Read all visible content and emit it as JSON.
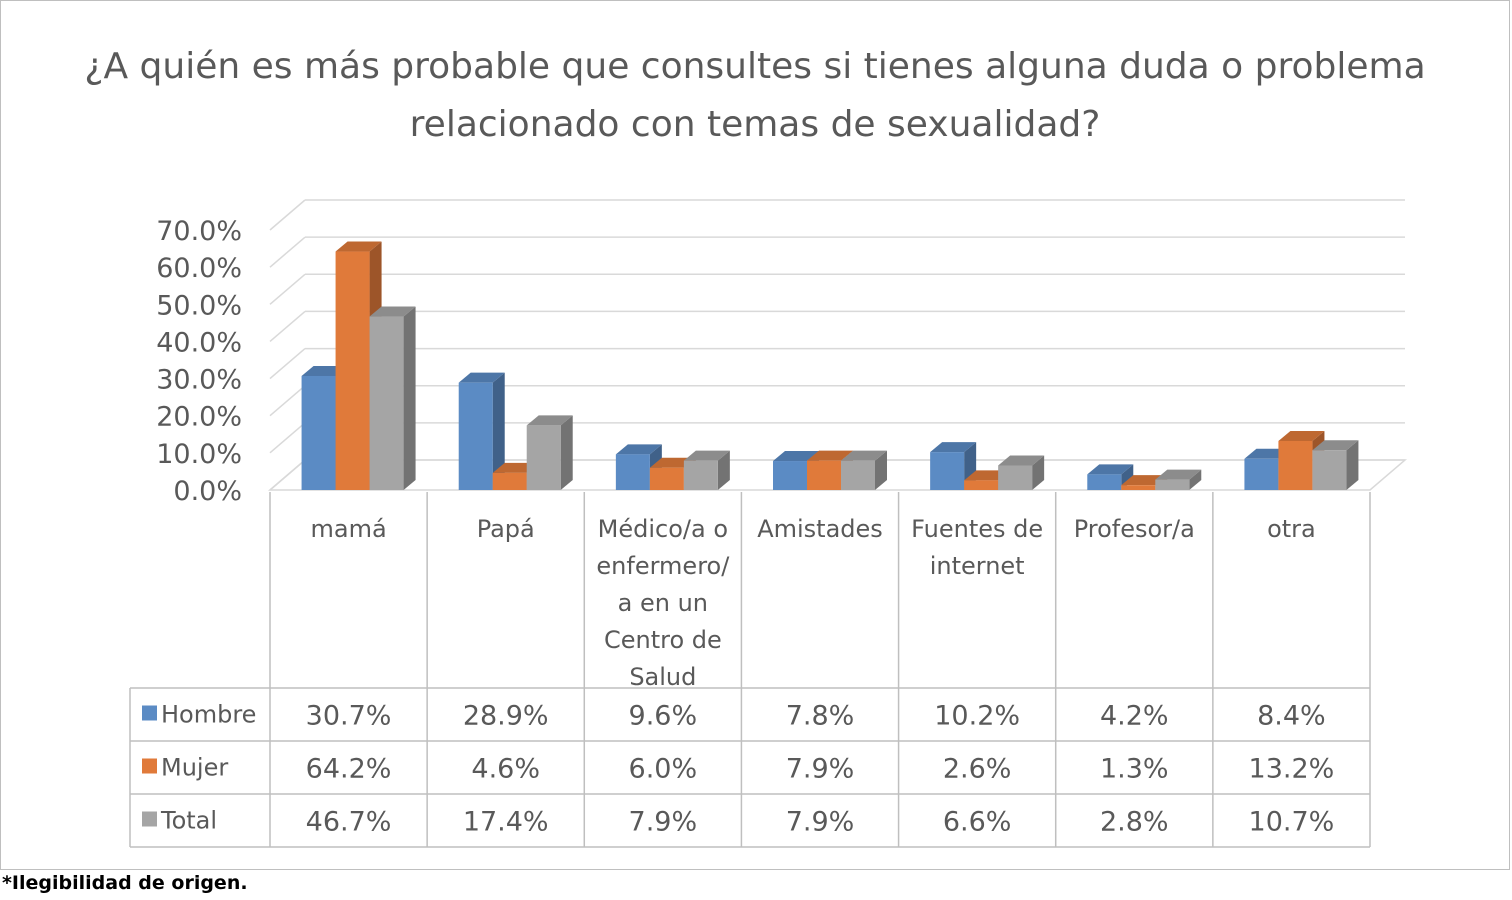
{
  "chart_data": {
    "type": "bar",
    "title": "¿A quién es más probable que consultes si tienes alguna duda o problema relacionado con temas de sexualidad?",
    "categories": [
      "mamá",
      "Papá",
      "Médico/a o enfermero/ a en un Centro de Salud",
      "Amistades",
      "Fuentes de internet",
      "Profesor/a",
      "otra"
    ],
    "category_lines": [
      [
        "mamá"
      ],
      [
        "Papá"
      ],
      [
        "Médico/a o",
        "enfermero/",
        "a en un",
        "Centro de",
        "Salud"
      ],
      [
        "Amistades"
      ],
      [
        "Fuentes de",
        "internet"
      ],
      [
        "Profesor/a"
      ],
      [
        "otra"
      ]
    ],
    "series": [
      {
        "name": "Hombre",
        "color": "#5b8bc4",
        "values": [
          30.7,
          28.9,
          9.6,
          7.8,
          10.2,
          4.2,
          8.4
        ],
        "labels": [
          "30.7%",
          "28.9%",
          "9.6%",
          "7.8%",
          "10.2%",
          "4.2%",
          "8.4%"
        ]
      },
      {
        "name": "Mujer",
        "color": "#e07a3a",
        "values": [
          64.2,
          4.6,
          6.0,
          7.9,
          2.6,
          1.3,
          13.2
        ],
        "labels": [
          "64.2%",
          "4.6%",
          "6.0%",
          "7.9%",
          "2.6%",
          "1.3%",
          "13.2%"
        ]
      },
      {
        "name": "Total",
        "color": "#a5a5a5",
        "values": [
          46.7,
          17.4,
          7.9,
          7.9,
          6.6,
          2.8,
          10.7
        ],
        "labels": [
          "46.7%",
          "17.4%",
          "7.9%",
          "7.9%",
          "6.6%",
          "2.8%",
          "10.7%"
        ]
      }
    ],
    "y_ticks": [
      "70.0%",
      "60.0%",
      "50.0%",
      "40.0%",
      "30.0%",
      "20.0%",
      "10.0%",
      "0.0%"
    ],
    "ylim": [
      0,
      70
    ],
    "grid": true,
    "legend": "data-table"
  },
  "footnote": "*Ilegibilidad de origen."
}
